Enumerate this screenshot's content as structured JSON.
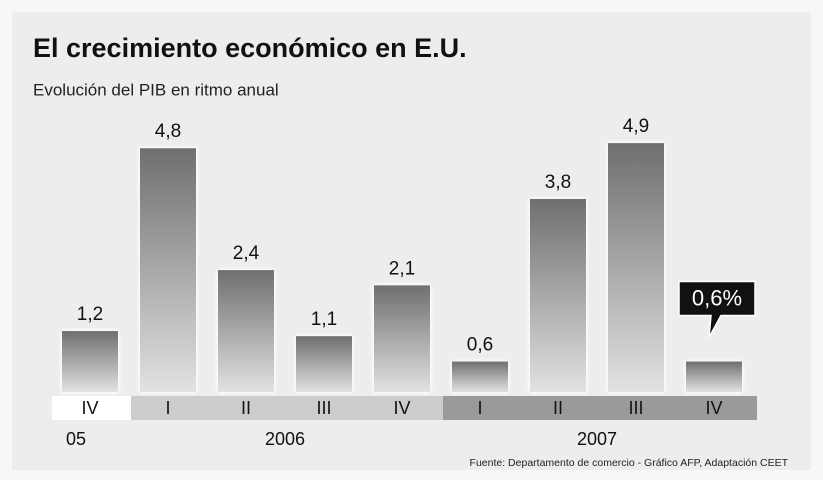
{
  "chart_data": {
    "type": "bar",
    "title": "El crecimiento económico en E.U.",
    "subtitle": "Evolución del PIB en ritmo anual",
    "source": "Fuente: Departamento de comercio - Gráfico AFP, Adaptación CEET",
    "groups": [
      {
        "label": "05",
        "color": "#ffffff",
        "categories": [
          "IV"
        ],
        "values": [
          1.2
        ],
        "value_labels": [
          "1,2"
        ]
      },
      {
        "label": "2006",
        "color": "#cccccc",
        "categories": [
          "I",
          "II",
          "III",
          "IV"
        ],
        "values": [
          4.8,
          2.4,
          1.1,
          2.1
        ],
        "value_labels": [
          "4,8",
          "2,4",
          "1,1",
          "2,1"
        ]
      },
      {
        "label": "2007",
        "color": "#9a9a9a",
        "categories": [
          "I",
          "II",
          "III",
          "IV"
        ],
        "values": [
          0.6,
          3.8,
          4.9,
          0.6
        ],
        "value_labels": [
          "0,6",
          "3,8",
          "4,9",
          "0,6%"
        ]
      }
    ],
    "highlight": "0,6%"
  }
}
